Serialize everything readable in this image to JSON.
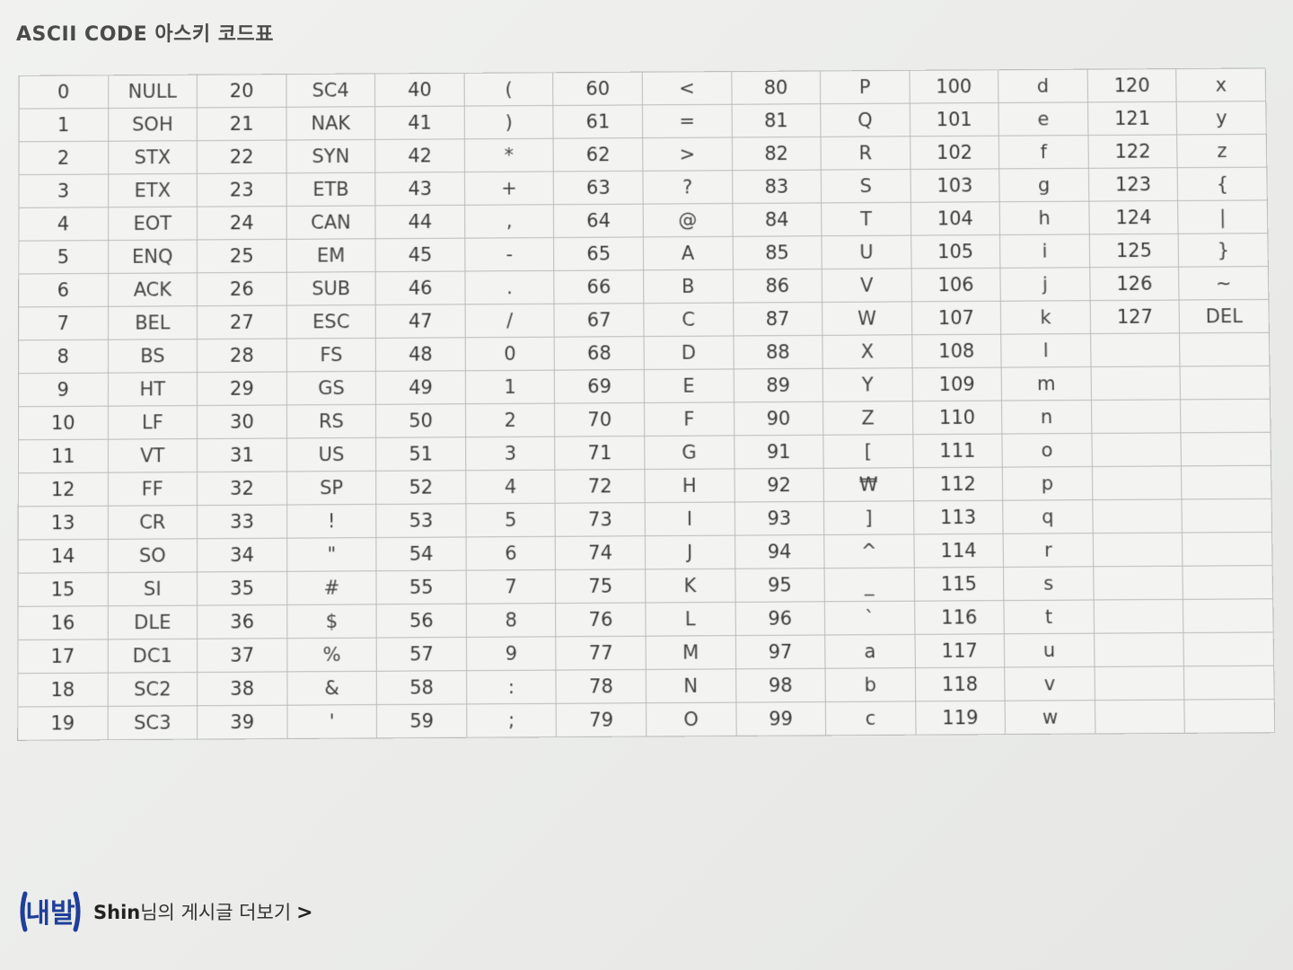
{
  "title": "ASCII CODE 아스키 코드표",
  "ascii_table": {
    "rows": [
      [
        "0",
        "NULL",
        "20",
        "SC4",
        "40",
        "(",
        "60",
        "<",
        "80",
        "P",
        "100",
        "d",
        "120",
        "x"
      ],
      [
        "1",
        "SOH",
        "21",
        "NAK",
        "41",
        ")",
        "61",
        "=",
        "81",
        "Q",
        "101",
        "e",
        "121",
        "y"
      ],
      [
        "2",
        "STX",
        "22",
        "SYN",
        "42",
        "*",
        "62",
        ">",
        "82",
        "R",
        "102",
        "f",
        "122",
        "z"
      ],
      [
        "3",
        "ETX",
        "23",
        "ETB",
        "43",
        "+",
        "63",
        "?",
        "83",
        "S",
        "103",
        "g",
        "123",
        "{"
      ],
      [
        "4",
        "EOT",
        "24",
        "CAN",
        "44",
        ",",
        "64",
        "@",
        "84",
        "T",
        "104",
        "h",
        "124",
        "|"
      ],
      [
        "5",
        "ENQ",
        "25",
        "EM",
        "45",
        "-",
        "65",
        "A",
        "85",
        "U",
        "105",
        "i",
        "125",
        "}"
      ],
      [
        "6",
        "ACK",
        "26",
        "SUB",
        "46",
        ".",
        "66",
        "B",
        "86",
        "V",
        "106",
        "j",
        "126",
        "~"
      ],
      [
        "7",
        "BEL",
        "27",
        "ESC",
        "47",
        "/",
        "67",
        "C",
        "87",
        "W",
        "107",
        "k",
        "127",
        "DEL"
      ],
      [
        "8",
        "BS",
        "28",
        "FS",
        "48",
        "0",
        "68",
        "D",
        "88",
        "X",
        "108",
        "l",
        "",
        ""
      ],
      [
        "9",
        "HT",
        "29",
        "GS",
        "49",
        "1",
        "69",
        "E",
        "89",
        "Y",
        "109",
        "m",
        "",
        ""
      ],
      [
        "10",
        "LF",
        "30",
        "RS",
        "50",
        "2",
        "70",
        "F",
        "90",
        "Z",
        "110",
        "n",
        "",
        ""
      ],
      [
        "11",
        "VT",
        "31",
        "US",
        "51",
        "3",
        "71",
        "G",
        "91",
        "[",
        "111",
        "o",
        "",
        ""
      ],
      [
        "12",
        "FF",
        "32",
        "SP",
        "52",
        "4",
        "72",
        "H",
        "92",
        "₩",
        "112",
        "p",
        "",
        ""
      ],
      [
        "13",
        "CR",
        "33",
        "!",
        "53",
        "5",
        "73",
        "I",
        "93",
        "]",
        "113",
        "q",
        "",
        ""
      ],
      [
        "14",
        "SO",
        "34",
        "\"",
        "54",
        "6",
        "74",
        "J",
        "94",
        "^",
        "114",
        "r",
        "",
        ""
      ],
      [
        "15",
        "SI",
        "35",
        "#",
        "55",
        "7",
        "75",
        "K",
        "95",
        "_",
        "115",
        "s",
        "",
        ""
      ],
      [
        "16",
        "DLE",
        "36",
        "$",
        "56",
        "8",
        "76",
        "L",
        "96",
        "`",
        "116",
        "t",
        "",
        ""
      ],
      [
        "17",
        "DC1",
        "37",
        "%",
        "57",
        "9",
        "77",
        "M",
        "97",
        "a",
        "117",
        "u",
        "",
        ""
      ],
      [
        "18",
        "SC2",
        "38",
        "&",
        "58",
        ":",
        "78",
        "N",
        "98",
        "b",
        "118",
        "v",
        "",
        ""
      ],
      [
        "19",
        "SC3",
        "39",
        "'",
        "59",
        ";",
        "79",
        "O",
        "99",
        "c",
        "119",
        "w",
        "",
        ""
      ]
    ]
  },
  "footer": {
    "logo_text": "내발",
    "author": "Shin",
    "suffix": "님의 게시글 더보기",
    "chevron": ">"
  },
  "colors": {
    "background": "#eeefed",
    "grid_line": "#b9bbb8",
    "logo_blue": "#1f3f99"
  }
}
